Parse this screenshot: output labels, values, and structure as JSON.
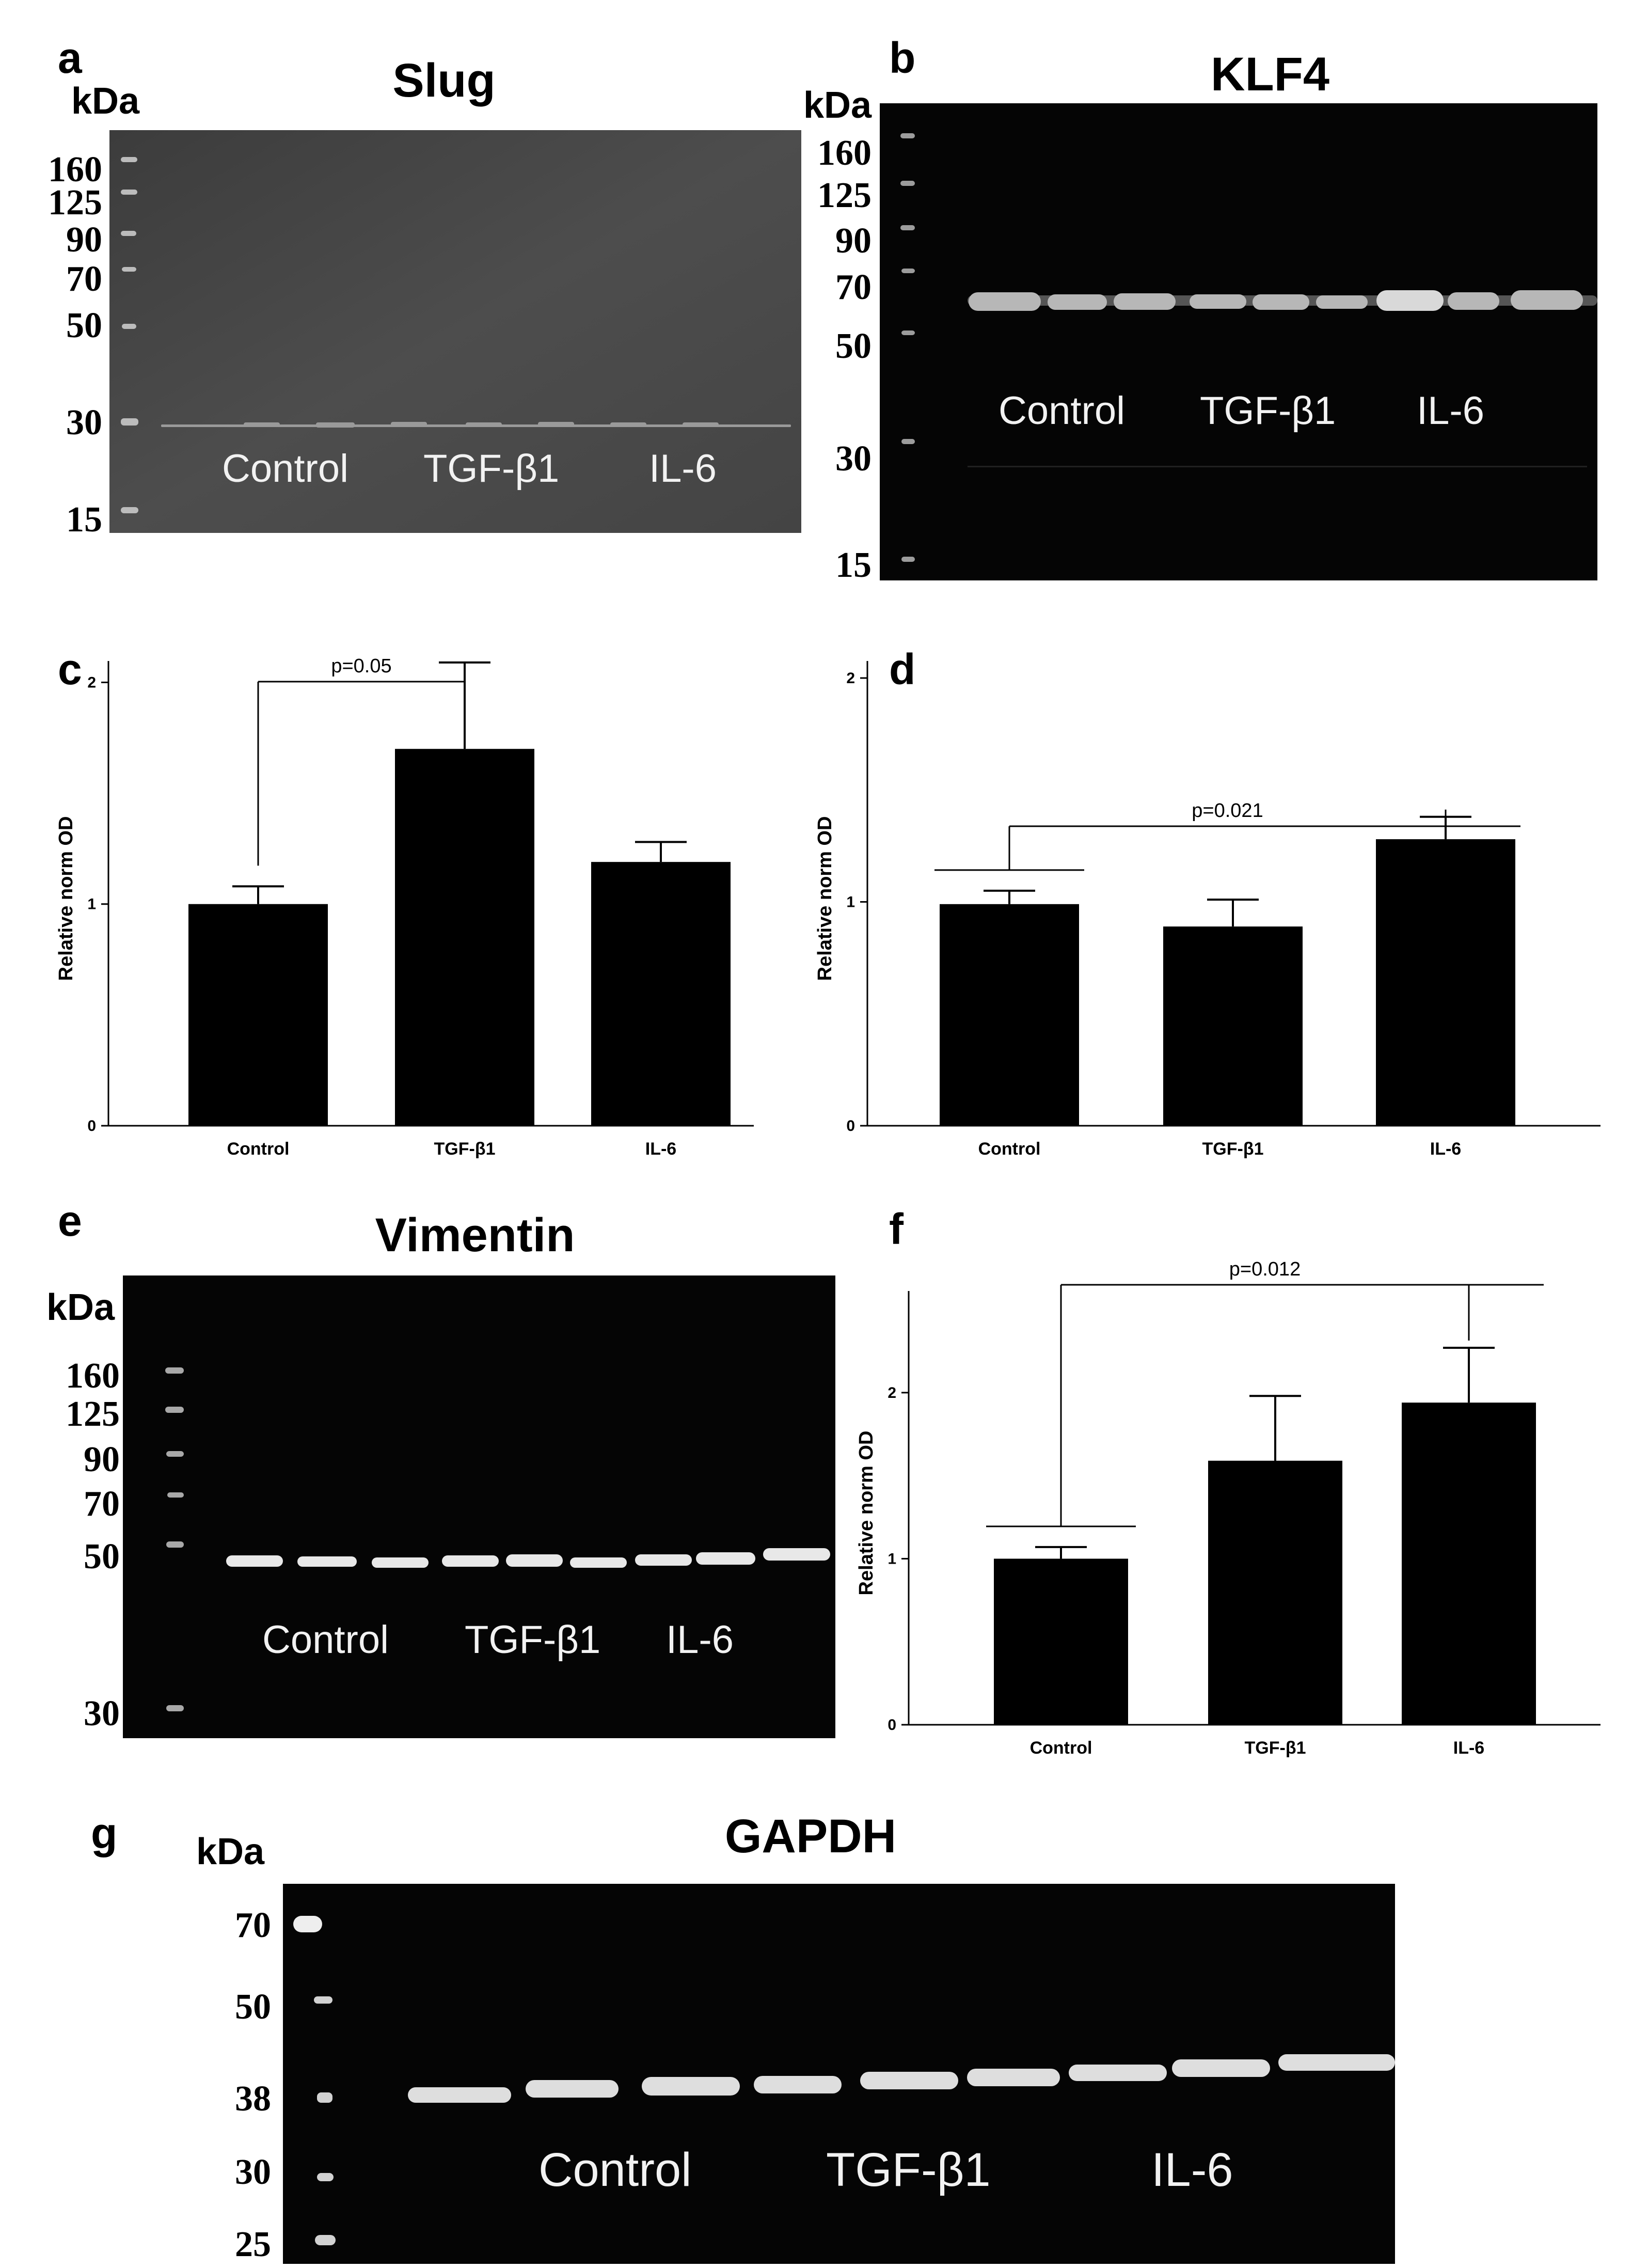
{
  "panels": {
    "a": {
      "letter": "a",
      "title": "Slug",
      "kda_label": "kDa",
      "markers": [
        "160",
        "125",
        "90",
        "70",
        "50",
        "30",
        "15"
      ],
      "lanes": [
        "Control",
        "TGF-β1",
        "IL-6"
      ]
    },
    "b": {
      "letter": "b",
      "title": "KLF4",
      "kda_label": "kDa",
      "markers": [
        "160",
        "125",
        "90",
        "70",
        "50",
        "30",
        "15"
      ],
      "lanes": [
        "Control",
        "TGF-β1",
        "IL-6"
      ]
    },
    "e": {
      "letter": "e",
      "title": "Vimentin",
      "kda_label": "kDa",
      "markers": [
        "160",
        "125",
        "90",
        "70",
        "50",
        "30"
      ],
      "lanes": [
        "Control",
        "TGF-β1",
        "IL-6"
      ]
    },
    "g": {
      "letter": "g",
      "title": "GAPDH",
      "kda_label": "kDa",
      "markers": [
        "70",
        "50",
        "38",
        "30",
        "25"
      ],
      "lanes": [
        "Control",
        "TGF-β1",
        "IL-6"
      ]
    }
  },
  "chart_data": [
    {
      "panel": "c",
      "type": "bar",
      "categories": [
        "Control",
        "TGF-β1",
        "IL-6"
      ],
      "values": [
        1.0,
        1.7,
        1.19
      ],
      "errors": [
        0.08,
        0.39,
        0.09
      ],
      "ylabel": "Relative norm OD",
      "ylim": [
        0,
        2.05
      ],
      "yticks": [
        "0",
        "1",
        "2"
      ],
      "annotation": "p=0.05",
      "comparison": [
        "Control",
        "TGF-β1"
      ]
    },
    {
      "panel": "d",
      "type": "bar",
      "categories": [
        "Control",
        "TGF-β1",
        "IL-6"
      ],
      "values": [
        0.99,
        0.89,
        1.28
      ],
      "errors": [
        0.06,
        0.12,
        0.1
      ],
      "ylabel": "Relative norm OD",
      "ylim": [
        0,
        2.03
      ],
      "yticks": [
        "0",
        "1",
        "2"
      ],
      "annotation": "p=0.021",
      "comparison": [
        "Control",
        "IL-6"
      ]
    },
    {
      "panel": "f",
      "type": "bar",
      "categories": [
        "Control",
        "TGF-β1",
        "IL-6"
      ],
      "values": [
        1.0,
        1.59,
        1.94
      ],
      "errors": [
        0.07,
        0.39,
        0.33
      ],
      "ylabel": "Relative norm OD",
      "ylim": [
        0,
        2.55
      ],
      "yticks": [
        "0",
        "1",
        "2"
      ],
      "annotation": "p=0.012",
      "comparison": [
        "Control",
        "IL-6"
      ]
    }
  ],
  "chart_letters": {
    "c": "c",
    "d": "d",
    "f": "f"
  }
}
